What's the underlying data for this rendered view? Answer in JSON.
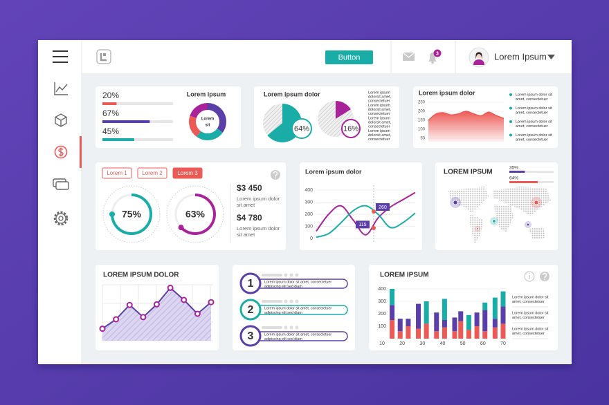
{
  "header": {
    "button": "Button",
    "notification_count": 3,
    "user_name": "Lorem Ipsum"
  },
  "progress": {
    "title": "Lorem ipsum",
    "values": [
      20,
      67,
      45
    ],
    "value_labels": [
      "20%",
      "67%",
      "45%"
    ],
    "colors": [
      "#ec5a55",
      "#5b3fa8",
      "#1aada7"
    ],
    "donut": {
      "label": [
        "Lorem",
        "sit"
      ],
      "values": [
        35,
        25,
        20,
        20
      ],
      "colors": [
        "#5b3fa8",
        "#1aada7",
        "#ec5a55",
        "#a8229a"
      ]
    }
  },
  "pies": {
    "title": "Lorem ipsum dolor",
    "values": [
      64,
      16
    ],
    "value_labels": [
      "64%",
      "16%"
    ],
    "colors": [
      "#1aada7",
      "#a8229a"
    ],
    "legend": [
      [
        "Lorem ipsum",
        "dolorsit amet,",
        "consectetuer"
      ],
      [
        "Lorem ipsum",
        "dolorsit amet,",
        "consectetuer"
      ],
      [
        "Lorem ipsum",
        "dolorsit amet,",
        "consectetuer"
      ],
      [
        "Lorem ipsum",
        "dolorsit amet,",
        "consectetuer"
      ]
    ]
  },
  "area": {
    "title": "Lorem ipsum dolor",
    "ylim": [
      50,
      250
    ],
    "yticks": [
      250,
      200,
      150,
      100,
      50
    ],
    "values": [
      150,
      185,
      192,
      180,
      186,
      200,
      186,
      175,
      195,
      176,
      160
    ],
    "color": "#ec5a55",
    "legend_color": "#1aada7",
    "legend": [
      [
        "Lorem ipsum dolor sit",
        "amet, consectetuer"
      ],
      [
        "Lorem ipsum dolor sit",
        "amet, consectetuer"
      ],
      [
        "Lorem ipsum dolor sit",
        "amet, consectetuer"
      ],
      [
        "Lorem ipsum dolor sit",
        "amet, consectetuer"
      ]
    ]
  },
  "stats": {
    "tabs": [
      "Lorem 1",
      "Lorem 2",
      "Lorem 3"
    ],
    "active_tab": 2,
    "gauges": {
      "values": [
        75,
        63
      ],
      "value_labels": [
        "75%",
        "63%"
      ],
      "colors": [
        "#1aada7",
        "#a8229a"
      ]
    },
    "amounts": {
      "values": [
        3450,
        4780
      ],
      "value_labels": [
        "$3 450",
        "$4 780"
      ],
      "notes": [
        [
          "Lorem ipsum dolor",
          "sit amet"
        ],
        [
          "Lorem ipsum dolor",
          "sit amet"
        ]
      ]
    }
  },
  "lines": {
    "title": "Lorem ipsum dolor",
    "ylim": [
      0,
      400
    ],
    "yticks": [
      400,
      300,
      200,
      100,
      0
    ],
    "series": [
      {
        "color": "#a8229a",
        "values": [
          60,
          200,
          270,
          150,
          30,
          170,
          260,
          320,
          380
        ],
        "callout": 260
      },
      {
        "color": "#1aada7",
        "values": [
          10,
          40,
          130,
          230,
          270,
          200,
          90,
          130,
          210
        ],
        "callout": 115
      }
    ]
  },
  "map": {
    "title": "LOREM IPSUM",
    "values": [
      35,
      64
    ],
    "value_labels": [
      "35%",
      "64%"
    ],
    "colors": [
      "#5b3fa8",
      "#ec5a55"
    ]
  },
  "trend": {
    "title": "LOREM IPSUM DOLOR",
    "values": [
      18,
      35,
      61,
      39,
      62,
      92,
      70,
      45,
      66
    ],
    "line_color": "#5b3fa8",
    "marker_color": "#a8229a"
  },
  "steps": {
    "items": [
      {
        "number": 1,
        "lines": [
          "Lorem ipsum dolor sit amet, consectetuer",
          "adipiscing elit sed diam"
        ],
        "color": "#5b3fa8"
      },
      {
        "number": 2,
        "lines": [
          "Lorem ipsum dolor sit amet, consectetuer",
          "adipiscing elit sed diam"
        ],
        "color": "#1aada7"
      },
      {
        "number": 3,
        "lines": [
          "Lorem ipsum dolor sit amet, consectetuer",
          "adipiscing elit sed diam"
        ],
        "color": "#5b3fa8"
      }
    ]
  },
  "bars": {
    "title": "LOREM IPSUM",
    "ylim": [
      0,
      400
    ],
    "yticks": [
      400,
      300,
      200,
      100
    ],
    "xlim": [
      10,
      70
    ],
    "xticks": [
      10,
      20,
      30,
      40,
      50,
      60,
      70
    ],
    "x": [
      15,
      19,
      23,
      28,
      32,
      37,
      41,
      46,
      49,
      53,
      57,
      61,
      66,
      70
    ],
    "series": [
      {
        "color": "#ec5a55",
        "values": [
          150,
          60,
          100,
          80,
          120,
          60,
          90,
          60,
          140,
          70,
          100,
          60,
          90,
          120
        ]
      },
      {
        "color": "#5b3fa8",
        "values": [
          120,
          100,
          60,
          200,
          0,
          150,
          60,
          110,
          80,
          0,
          110,
          170,
          70,
          140
        ]
      },
      {
        "color": "#1aada7",
        "values": [
          130,
          0,
          0,
          0,
          180,
          0,
          170,
          0,
          0,
          120,
          0,
          60,
          170,
          120
        ]
      }
    ],
    "legend": [
      [
        "Lorem ipsum dolor sit",
        "amet, consectetuer"
      ],
      [
        "Lorem ipsum dolor sit",
        "amet, consectetuer"
      ],
      [
        "Lorem ipsum dolor sit",
        "amet, consectetuer"
      ]
    ]
  }
}
